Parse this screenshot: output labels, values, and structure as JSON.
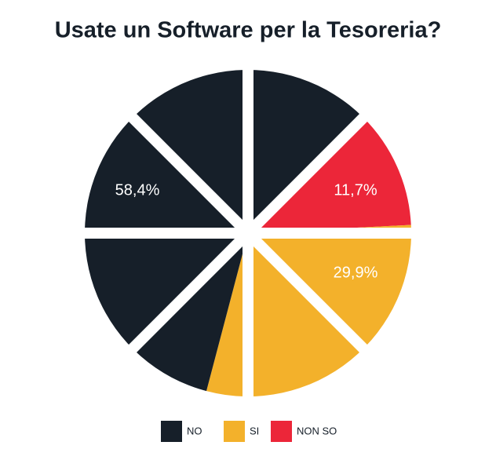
{
  "chart_data": {
    "type": "pie",
    "title": "Usate un Software per la Tesoreria?",
    "categories": [
      "NO",
      "SI",
      "NON SO"
    ],
    "values": [
      58.4,
      29.9,
      11.7
    ],
    "value_labels": [
      "58,4%",
      "29,9%",
      "11,7%"
    ],
    "colors": [
      "#161f29",
      "#f3b12b",
      "#ec2639"
    ]
  }
}
